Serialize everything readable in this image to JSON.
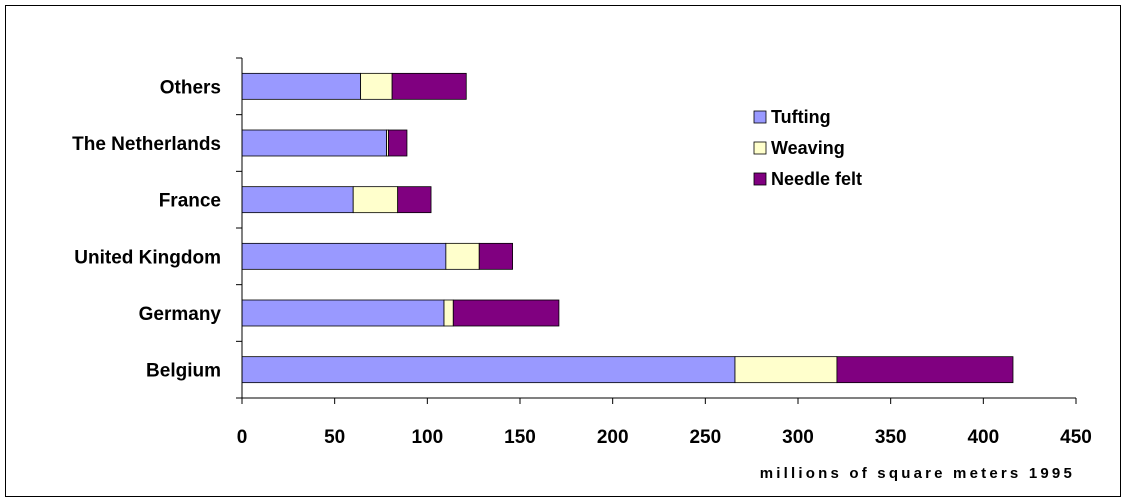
{
  "chart_data": {
    "type": "bar",
    "orientation": "horizontal",
    "stacked": true,
    "title": "",
    "xlabel": "millions of square meters 1995",
    "ylabel": "",
    "xlim": [
      0,
      450
    ],
    "xticks": [
      0,
      50,
      100,
      150,
      200,
      250,
      300,
      350,
      400,
      450
    ],
    "grid": false,
    "legend_position": "top-right",
    "categories": [
      "Belgium",
      "Germany",
      "United Kingdom",
      "France",
      "The Netherlands",
      "Others"
    ],
    "series": [
      {
        "name": "Tufting",
        "color": "#9999ff",
        "values": [
          266,
          109,
          110,
          60,
          78,
          64
        ]
      },
      {
        "name": "Weaving",
        "color": "#ffffcc",
        "values": [
          55,
          5,
          18,
          24,
          1,
          17
        ]
      },
      {
        "name": "Needle felt",
        "color": "#800080",
        "values": [
          95,
          57,
          18,
          18,
          10,
          40
        ]
      }
    ]
  }
}
